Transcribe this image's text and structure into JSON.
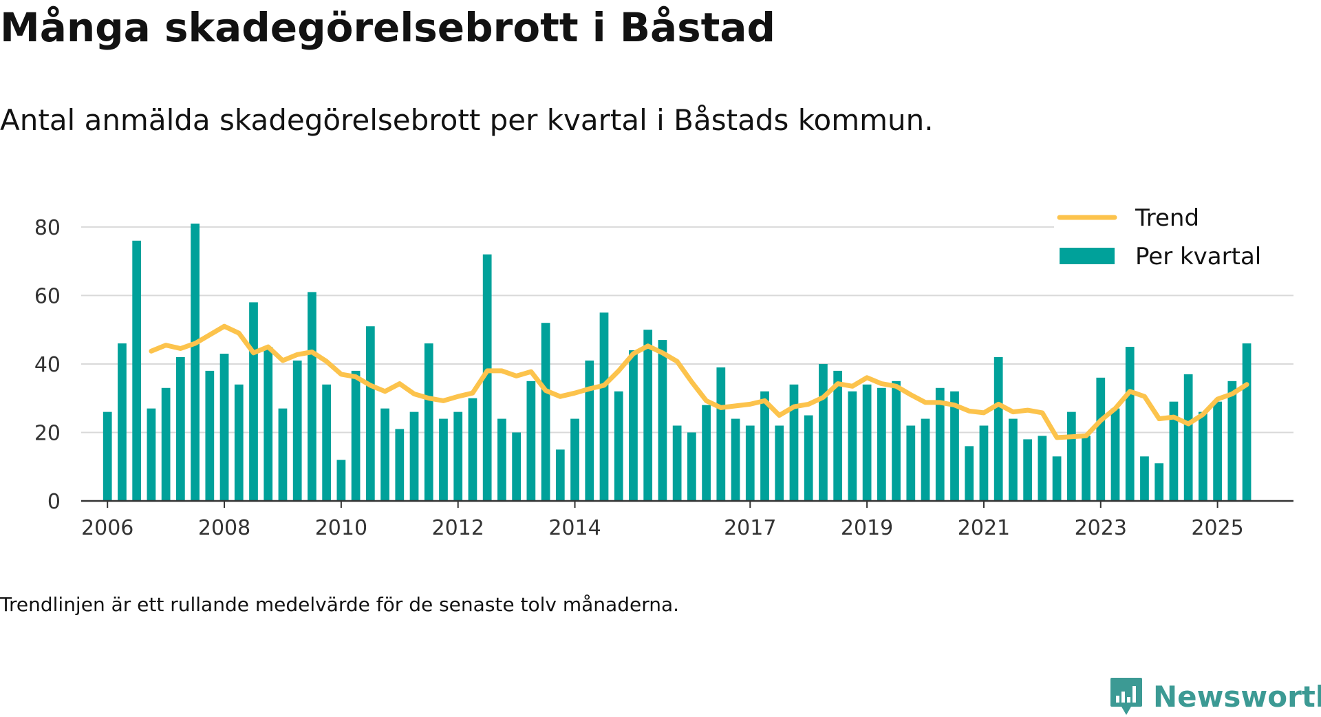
{
  "title": "Många skadegörelsebrott i Båstad",
  "subtitle": "Antal anmälda skadegörelsebrott per kvartal i Båstads kommun.",
  "footnote": "Trendlinjen är ett rullande medelvärde för de senaste tolv månaderna.",
  "brand": {
    "name": "Newsworthy",
    "icon": "newsworthy-logo-icon"
  },
  "colors": {
    "bars": "#00a19a",
    "trend": "#fcc34c",
    "grid": "#d9d9d9",
    "axis": "#333333",
    "brand": "#3c9a94"
  },
  "chart_data": {
    "type": "bar",
    "x_start": 2006.0,
    "x_step": 0.25,
    "xlim": [
      2005.55,
      2026.3
    ],
    "ylim": [
      0,
      85
    ],
    "yticks": [
      0,
      20,
      40,
      60,
      80
    ],
    "xticks": [
      2006,
      2008,
      2010,
      2012,
      2014,
      2017,
      2019,
      2021,
      2023,
      2025
    ],
    "legend": {
      "position": "top-right",
      "entries": [
        "Trend",
        "Per kvartal"
      ]
    },
    "series": [
      {
        "name": "Per kvartal",
        "type": "bar",
        "values": [
          26,
          46,
          76,
          27,
          33,
          42,
          81,
          38,
          43,
          34,
          58,
          45,
          27,
          41,
          61,
          34,
          12,
          38,
          51,
          27,
          21,
          26,
          46,
          24,
          26,
          30,
          72,
          24,
          20,
          35,
          52,
          15,
          24,
          41,
          55,
          32,
          44,
          50,
          47,
          22,
          20,
          28,
          39,
          24,
          22,
          32,
          22,
          34,
          25,
          40,
          38,
          32,
          34,
          33,
          35,
          22,
          24,
          33,
          32,
          16,
          22,
          42,
          24,
          18,
          19,
          13,
          26,
          19,
          36,
          27,
          45,
          13,
          11,
          29,
          37,
          26,
          29,
          35,
          46
        ]
      },
      {
        "name": "Trend",
        "type": "line",
        "values": [
          null,
          null,
          null,
          43.75,
          45.5,
          44.5,
          46,
          48.5,
          51,
          49,
          43.25,
          45,
          41,
          42.75,
          43.5,
          40.75,
          37,
          36.25,
          33.75,
          32,
          34.25,
          31.25,
          30,
          29.25,
          30.5,
          31.5,
          38,
          38,
          36.5,
          37.75,
          32.25,
          30.5,
          31.5,
          32.75,
          33.75,
          38,
          43,
          45.25,
          43.25,
          40.75,
          34.75,
          29.25,
          27.25,
          27.75,
          28.25,
          29.25,
          25,
          27.5,
          28.25,
          30.25,
          34.25,
          33.5,
          36,
          34.25,
          33.5,
          31,
          28.75,
          28.75,
          28,
          26.25,
          25.75,
          28.25,
          26,
          26.5,
          25.75,
          18.5,
          18.75,
          19,
          23.5,
          27,
          32,
          30.5,
          24,
          24.5,
          22.5,
          25.25,
          29.75,
          31.25,
          34
        ]
      }
    ]
  }
}
